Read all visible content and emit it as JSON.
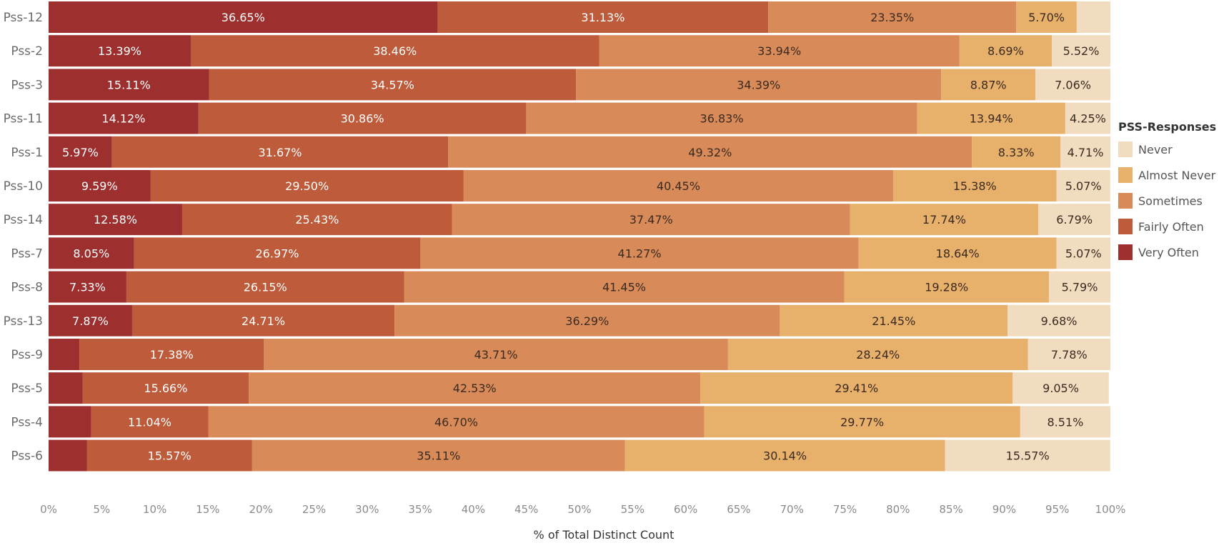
{
  "chart_data": {
    "type": "bar",
    "orientation": "horizontal",
    "stacked": true,
    "normalized": true,
    "categories": [
      "Pss-12",
      "Pss-2",
      "Pss-3",
      "Pss-11",
      "Pss-1",
      "Pss-10",
      "Pss-14",
      "Pss-7",
      "Pss-8",
      "Pss-13",
      "Pss-9",
      "Pss-5",
      "Pss-4",
      "Pss-6"
    ],
    "series": [
      {
        "name": "Very Often",
        "color": "#9e2f2f",
        "label_color": "#ffffff",
        "values": [
          36.65,
          13.39,
          15.11,
          14.12,
          5.97,
          9.59,
          12.58,
          8.05,
          7.33,
          7.87,
          2.9,
          3.2,
          4.0,
          3.6
        ]
      },
      {
        "name": "Fairly Often",
        "color": "#bd5b3a",
        "label_color": "#ffffff",
        "values": [
          31.13,
          38.46,
          34.57,
          30.86,
          31.67,
          29.5,
          25.43,
          26.97,
          26.15,
          24.71,
          17.38,
          15.66,
          11.04,
          15.57
        ]
      },
      {
        "name": "Sometimes",
        "color": "#d88b58",
        "label_color": "#3a2a20",
        "values": [
          23.35,
          33.94,
          34.39,
          36.83,
          49.32,
          40.45,
          37.47,
          41.27,
          41.45,
          36.29,
          43.71,
          42.53,
          46.7,
          35.11
        ]
      },
      {
        "name": "Almost Never",
        "color": "#e7b06b",
        "label_color": "#3a2a20",
        "values": [
          5.7,
          8.69,
          8.87,
          13.94,
          8.33,
          15.38,
          17.74,
          18.64,
          19.28,
          21.45,
          28.24,
          29.41,
          29.77,
          30.14
        ]
      },
      {
        "name": "Never",
        "color": "#f1dcc0",
        "label_color": "#3a2a20",
        "values": [
          3.17,
          5.52,
          7.06,
          4.25,
          4.71,
          5.07,
          6.79,
          5.07,
          5.79,
          9.68,
          7.78,
          9.05,
          8.51,
          15.57
        ]
      }
    ],
    "data_labels": [
      [
        [
          "36.65%",
          "31.13%",
          "23.35%",
          "5.70%",
          ""
        ]
      ],
      [
        [
          "13.39%",
          "38.46%",
          "33.94%",
          "8.69%",
          "5.52%"
        ]
      ],
      [
        [
          "15.11%",
          "34.57%",
          "34.39%",
          "8.87%",
          "7.06%"
        ]
      ],
      [
        [
          "14.12%",
          "30.86%",
          "36.83%",
          "13.94%",
          "4.25%"
        ]
      ],
      [
        [
          "5.97%",
          "31.67%",
          "49.32%",
          "8.33%",
          "4.71%"
        ]
      ],
      [
        [
          "9.59%",
          "29.50%",
          "40.45%",
          "15.38%",
          "5.07%"
        ]
      ],
      [
        [
          "12.58%",
          "25.43%",
          "37.47%",
          "17.74%",
          "6.79%"
        ]
      ],
      [
        [
          "8.05%",
          "26.97%",
          "41.27%",
          "18.64%",
          "5.07%"
        ]
      ],
      [
        [
          "7.33%",
          "26.15%",
          "41.45%",
          "19.28%",
          "5.79%"
        ]
      ],
      [
        [
          "7.87%",
          "24.71%",
          "36.29%",
          "21.45%",
          "9.68%"
        ]
      ],
      [
        [
          "",
          "17.38%",
          "43.71%",
          "28.24%",
          "7.78%"
        ]
      ],
      [
        [
          "",
          "15.66%",
          "42.53%",
          "29.41%",
          "9.05%"
        ]
      ],
      [
        [
          "",
          "11.04%",
          "46.70%",
          "29.77%",
          "8.51%"
        ]
      ],
      [
        [
          "",
          "15.57%",
          "35.11%",
          "30.14%",
          "15.57%"
        ]
      ]
    ],
    "xlim": [
      0,
      100
    ],
    "x_ticks": [
      "0%",
      "5%",
      "10%",
      "15%",
      "20%",
      "25%",
      "30%",
      "35%",
      "40%",
      "45%",
      "50%",
      "55%",
      "60%",
      "65%",
      "70%",
      "75%",
      "80%",
      "85%",
      "90%",
      "95%",
      "100%"
    ],
    "xlabel": "% of Total Distinct Count",
    "ylabel": "",
    "title": "",
    "grid": false,
    "legend": {
      "title": "PSS-Responses",
      "placement": "right",
      "items": [
        "Never",
        "Almost Never",
        "Sometimes",
        "Fairly Often",
        "Very Often"
      ]
    }
  }
}
